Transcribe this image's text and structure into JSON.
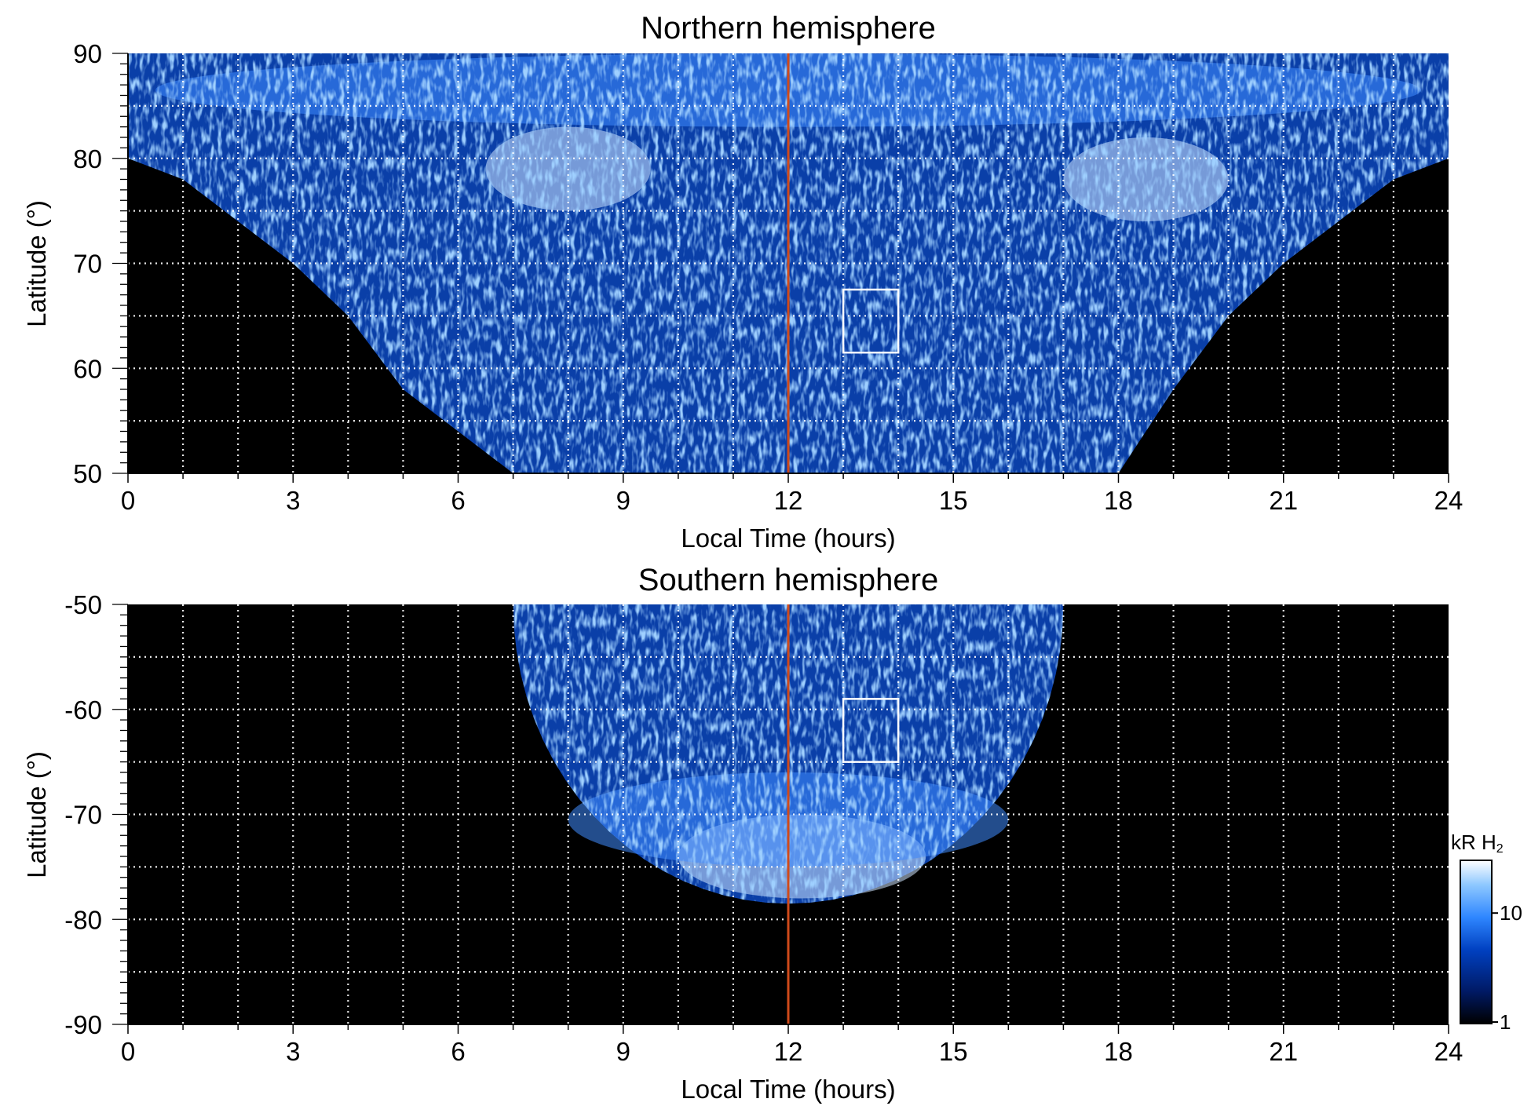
{
  "chart_data": [
    {
      "type": "heatmap",
      "title": "Northern hemisphere",
      "xlabel": "Local Time (hours)",
      "ylabel": "Latitude (°)",
      "xlim": [
        0,
        24
      ],
      "ylim": [
        50,
        90
      ],
      "x_ticks": [
        0,
        3,
        6,
        9,
        12,
        15,
        18,
        21,
        24
      ],
      "y_ticks": [
        50,
        60,
        70,
        80,
        90
      ],
      "grid": "dotted white, every 1 h and 5°",
      "noon_line": {
        "x": 12,
        "color": "#d04a1a"
      },
      "box": {
        "x": [
          13,
          14
        ],
        "y": [
          61.5,
          67.5
        ]
      },
      "footprint": {
        "x_min": [
          0,
          1,
          2,
          3,
          4,
          5,
          6,
          7
        ],
        "at_lat": [
          80,
          78,
          74,
          70,
          65,
          58,
          54,
          50
        ],
        "x_max": [
          24,
          23,
          22,
          21,
          20,
          19,
          18.5,
          18
        ]
      },
      "bright_regions": [
        {
          "x": [
            0.5,
            23.5
          ],
          "y": [
            83,
            90
          ],
          "level": "medium"
        },
        {
          "x": [
            6.5,
            9.5
          ],
          "y": [
            75,
            83
          ],
          "level": "high"
        },
        {
          "x": [
            17,
            20
          ],
          "y": [
            74,
            82
          ],
          "level": "high"
        }
      ]
    },
    {
      "type": "heatmap",
      "title": "Southern hemisphere",
      "xlabel": "Local Time (hours)",
      "ylabel": "Latitude (°)",
      "xlim": [
        0,
        24
      ],
      "ylim": [
        -90,
        -50
      ],
      "x_ticks": [
        0,
        3,
        6,
        9,
        12,
        15,
        18,
        21,
        24
      ],
      "y_ticks": [
        -90,
        -80,
        -70,
        -60,
        -50
      ],
      "grid": "dotted white, every 1 h and 5°",
      "noon_line": {
        "x": 12,
        "color": "#d04a1a"
      },
      "box": {
        "x": [
          13,
          14
        ],
        "y": [
          -65,
          -59
        ]
      },
      "footprint": {
        "center_x": 12,
        "half_width": 5,
        "lat_top": -50,
        "lat_bottom": -78.5
      },
      "bright_regions": [
        {
          "x": [
            10,
            14.5
          ],
          "y": [
            -78,
            -70
          ],
          "level": "high"
        },
        {
          "x": [
            8,
            16
          ],
          "y": [
            -75,
            -66
          ],
          "level": "medium"
        }
      ]
    }
  ],
  "colorbar": {
    "unit_label": "kR H",
    "unit_subscript": "2",
    "ticks": [
      1,
      10
    ],
    "scale": "log",
    "range": [
      1,
      30
    ],
    "colors": [
      "#000000",
      "#001a66",
      "#0040c0",
      "#2e86ff",
      "#8ec8ff",
      "#ffffff"
    ]
  }
}
